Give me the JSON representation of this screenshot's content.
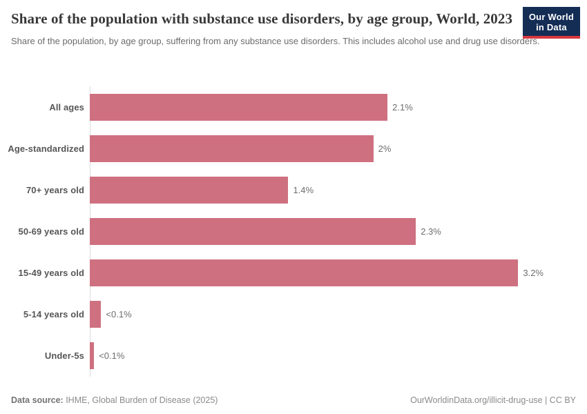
{
  "logo": {
    "line1": "Our World",
    "line2": "in Data",
    "bg_color": "#142d55",
    "accent_color": "#d7383f"
  },
  "header": {
    "title": "Share of the population with substance use disorders, by age group, World, 2023",
    "subtitle": "Share of the population, by age group, suffering from any substance use disorders. This includes alcohol use and drug use disorders."
  },
  "chart_data": {
    "type": "bar",
    "orientation": "horizontal",
    "title": "Share of the population with substance use disorders, by age group, World, 2023",
    "categories": [
      "All ages",
      "Age-standardized",
      "70+ years old",
      "50-69 years old",
      "15-49 years old",
      "5-14 years old",
      "Under-5s"
    ],
    "values": [
      2.1,
      2.0,
      1.4,
      2.3,
      3.2,
      0.08,
      0.03
    ],
    "value_labels": [
      "2.1%",
      "2%",
      "1.4%",
      "2.3%",
      "3.2%",
      "<0.1%",
      "<0.1%"
    ],
    "unit": "%",
    "xlim": [
      0,
      3.2
    ],
    "grid": false,
    "legend": "none",
    "bar_color": "#ce7080",
    "axis_line_color": "#dcdcdc"
  },
  "footer": {
    "source_label": "Data source:",
    "source_text": " IHME, Global Burden of Disease (2025)",
    "right_text": "OurWorldinData.org/illicit-drug-use | CC BY"
  }
}
